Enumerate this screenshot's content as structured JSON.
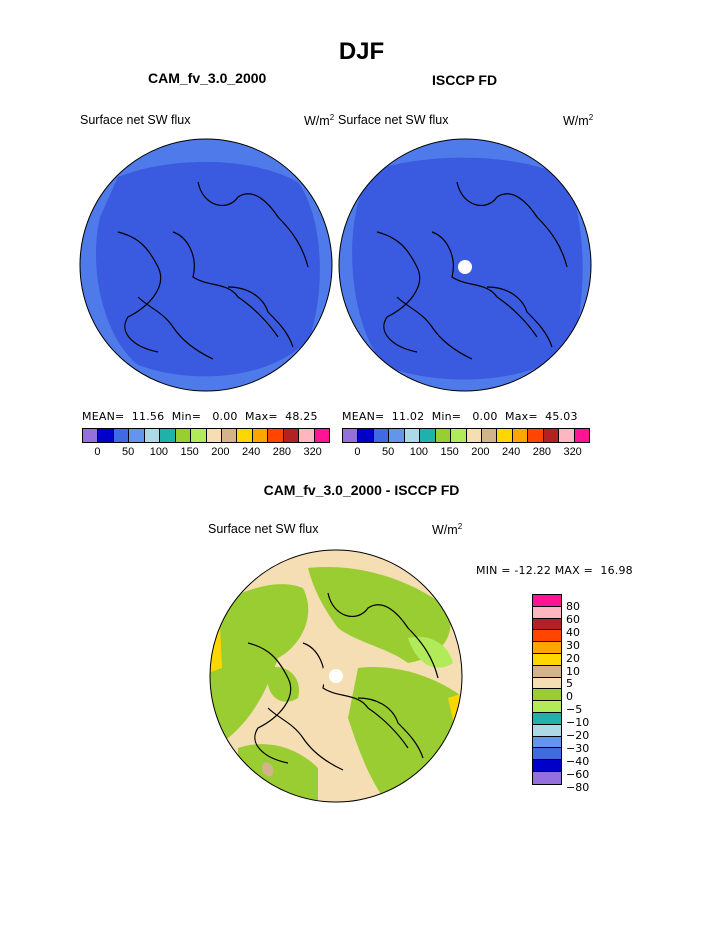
{
  "title": "DJF",
  "top_left": {
    "model": "CAM_fv_3.0_2000",
    "variable": "Surface net SW flux",
    "unit_base": "W/m",
    "unit_exp": "2",
    "stats": "MEAN=  11.56  Min=   0.00  Max=  48.25"
  },
  "top_right": {
    "model": "ISCCP FD",
    "variable": "Surface net SW flux",
    "unit_base": "W/m",
    "unit_exp": "2",
    "stats": "MEAN=  11.02  Min=   0.00  Max=  45.03"
  },
  "colorbar_ticks": [
    "0",
    "50",
    "100",
    "150",
    "200",
    "240",
    "280",
    "320"
  ],
  "colorbar_colors": [
    "#9370DB",
    "#0000C8",
    "#4169E1",
    "#6495ED",
    "#ADD8E6",
    "#20B2AA",
    "#9ACD32",
    "#B2EB5A",
    "#F5DEB3",
    "#D2B48C",
    "#FFD700",
    "#FFA500",
    "#FF4500",
    "#B22222",
    "#FFB6C1",
    "#FF1493"
  ],
  "bottom": {
    "title": "CAM_fv_3.0_2000 - ISCCP FD",
    "variable": "Surface net SW flux",
    "unit_base": "W/m",
    "unit_exp": "2",
    "minmax": "MIN = -12.22 MAX =  16.98",
    "legend_labels": [
      "80",
      "60",
      "40",
      "30",
      "20",
      "10",
      "5",
      "0",
      "-5",
      "-10",
      "-20",
      "-30",
      "-40",
      "-60",
      "-80"
    ],
    "legend_colors": [
      "#FF1493",
      "#FFB6C1",
      "#B22222",
      "#FF4500",
      "#FFA500",
      "#FFD700",
      "#D2B48C",
      "#F5DEB3",
      "#9ACD32",
      "#B2EB5A",
      "#20B2AA",
      "#ADD8E6",
      "#6495ED",
      "#4169E1",
      "#0000C8",
      "#9370DB"
    ]
  },
  "map_colors": {
    "low_flux": "#3A5BE0",
    "high_flux": "#4F7BEA",
    "diff_tan": "#F5DEB3",
    "diff_green": "#9ACD32",
    "diff_lightgreen": "#B2EB5A"
  }
}
